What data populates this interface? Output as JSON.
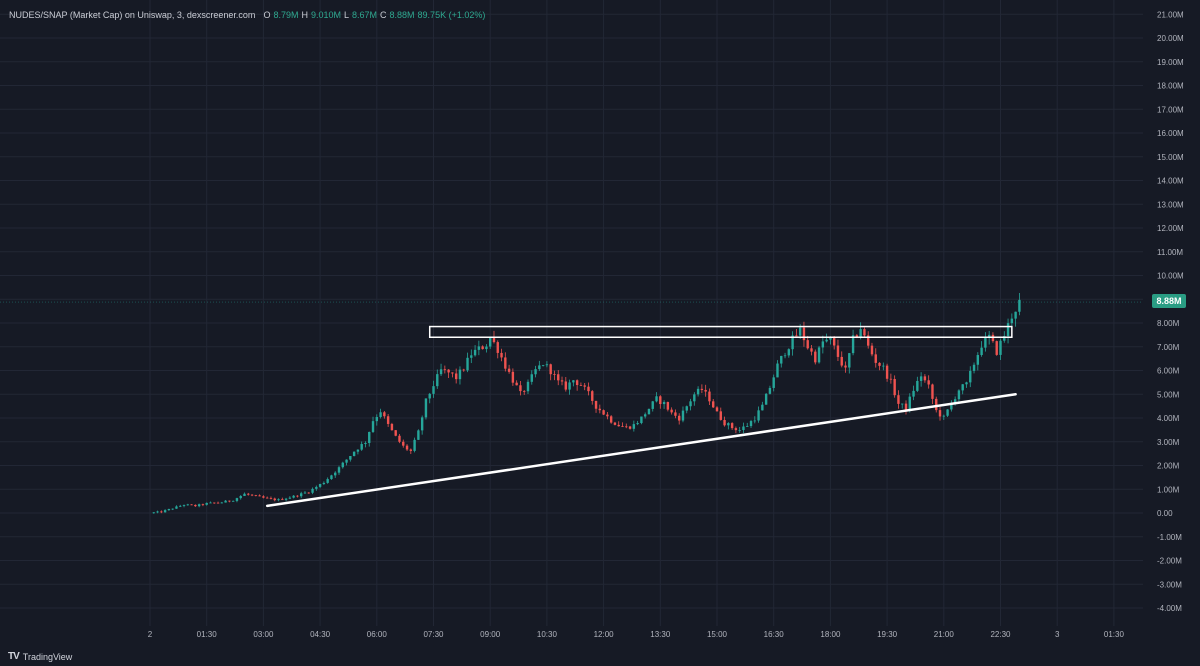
{
  "header": {
    "symbol": "NUDES/SNAP (Market Cap) on Uniswap, 3, dexscreener.com",
    "o_label": "O",
    "o_value": "8.79M",
    "h_label": "H",
    "h_value": "9.010M",
    "l_label": "L",
    "l_value": "8.67M",
    "c_label": "C",
    "c_value": "8.88M",
    "change": "89.75K (+1.02%)"
  },
  "price_badge": "8.88M",
  "brand": {
    "icon": "TV",
    "name": "TradingView"
  },
  "colors": {
    "background": "#161a25",
    "grid": "#222735",
    "up": "#26a69a",
    "down": "#ef5350",
    "badge": "#2a9d84",
    "annotation": "#ffffff"
  },
  "chart_data": {
    "type": "candlestick",
    "title": "NUDES/SNAP (Market Cap) on Uniswap, 3, dexscreener.com",
    "y_unit": "M",
    "ylim": [
      -4.5,
      21.2
    ],
    "y_ticks": [
      "21.00M",
      "20.00M",
      "19.00M",
      "18.00M",
      "17.00M",
      "16.00M",
      "15.00M",
      "14.00M",
      "13.00M",
      "12.00M",
      "11.00M",
      "10.00M",
      "9.00M",
      "8.00M",
      "7.00M",
      "6.00M",
      "5.00M",
      "4.00M",
      "3.00M",
      "2.00M",
      "1.00M",
      "0.00",
      "-1.00M",
      "-2.00M",
      "-3.00M",
      "-4.00M"
    ],
    "y_tick_values": [
      21,
      20,
      19,
      18,
      17,
      16,
      15,
      14,
      13,
      12,
      11,
      10,
      9,
      8,
      7,
      6,
      5,
      4,
      3,
      2,
      1,
      0,
      -1,
      -2,
      -3,
      -4
    ],
    "x_ticks": [
      "2",
      "01:30",
      "03:00",
      "04:30",
      "06:00",
      "07:30",
      "09:00",
      "10:30",
      "12:00",
      "13:30",
      "15:00",
      "16:30",
      "18:00",
      "19:30",
      "21:00",
      "22:30",
      "3",
      "01:30"
    ],
    "x_tick_hours": [
      0,
      1.5,
      3,
      4.5,
      6,
      7.5,
      9,
      10.5,
      12,
      13.5,
      15,
      16.5,
      18,
      19.5,
      21,
      22.5,
      24,
      25.5
    ],
    "candle_interval_minutes": 3,
    "last_price": 8.88,
    "price_path": [
      [
        0.0,
        0.0
      ],
      [
        0.3,
        0.05
      ],
      [
        0.6,
        0.2
      ],
      [
        0.9,
        0.35
      ],
      [
        1.2,
        0.3
      ],
      [
        1.5,
        0.4
      ],
      [
        1.9,
        0.45
      ],
      [
        2.2,
        0.55
      ],
      [
        2.5,
        0.8
      ],
      [
        2.8,
        0.7
      ],
      [
        3.1,
        0.6
      ],
      [
        3.4,
        0.55
      ],
      [
        3.8,
        0.7
      ],
      [
        4.2,
        0.9
      ],
      [
        4.6,
        1.3
      ],
      [
        5.0,
        1.9
      ],
      [
        5.4,
        2.6
      ],
      [
        5.7,
        3.0
      ],
      [
        5.9,
        3.9
      ],
      [
        6.1,
        4.3
      ],
      [
        6.3,
        3.7
      ],
      [
        6.5,
        3.2
      ],
      [
        6.7,
        2.8
      ],
      [
        6.9,
        2.6
      ],
      [
        7.1,
        3.4
      ],
      [
        7.3,
        4.7
      ],
      [
        7.5,
        5.4
      ],
      [
        7.7,
        6.0
      ],
      [
        7.9,
        5.9
      ],
      [
        8.1,
        5.7
      ],
      [
        8.3,
        6.1
      ],
      [
        8.5,
        6.7
      ],
      [
        8.7,
        6.9
      ],
      [
        8.9,
        7.1
      ],
      [
        9.0,
        7.4
      ],
      [
        9.2,
        6.9
      ],
      [
        9.4,
        6.2
      ],
      [
        9.6,
        5.6
      ],
      [
        9.8,
        5.0
      ],
      [
        10.0,
        5.4
      ],
      [
        10.2,
        6.0
      ],
      [
        10.4,
        6.3
      ],
      [
        10.6,
        6.0
      ],
      [
        10.8,
        5.5
      ],
      [
        11.0,
        5.3
      ],
      [
        11.2,
        5.6
      ],
      [
        11.4,
        5.4
      ],
      [
        11.6,
        5.0
      ],
      [
        11.8,
        4.5
      ],
      [
        12.0,
        4.2
      ],
      [
        12.2,
        3.9
      ],
      [
        12.4,
        3.7
      ],
      [
        12.6,
        3.6
      ],
      [
        12.8,
        3.7
      ],
      [
        13.0,
        4.0
      ],
      [
        13.2,
        4.4
      ],
      [
        13.4,
        4.8
      ],
      [
        13.6,
        4.6
      ],
      [
        13.8,
        4.2
      ],
      [
        14.0,
        4.0
      ],
      [
        14.2,
        4.5
      ],
      [
        14.4,
        5.0
      ],
      [
        14.6,
        5.2
      ],
      [
        14.8,
        4.8
      ],
      [
        15.0,
        4.2
      ],
      [
        15.2,
        3.8
      ],
      [
        15.4,
        3.6
      ],
      [
        15.6,
        3.5
      ],
      [
        15.8,
        3.7
      ],
      [
        16.0,
        4.0
      ],
      [
        16.2,
        4.5
      ],
      [
        16.4,
        5.3
      ],
      [
        16.6,
        6.2
      ],
      [
        16.8,
        6.8
      ],
      [
        17.0,
        7.3
      ],
      [
        17.2,
        7.7
      ],
      [
        17.4,
        7.0
      ],
      [
        17.6,
        6.5
      ],
      [
        17.8,
        7.2
      ],
      [
        18.0,
        7.3
      ],
      [
        18.2,
        6.6
      ],
      [
        18.4,
        6.0
      ],
      [
        18.6,
        7.3
      ],
      [
        18.8,
        7.8
      ],
      [
        19.0,
        7.0
      ],
      [
        19.2,
        6.4
      ],
      [
        19.4,
        6.1
      ],
      [
        19.6,
        5.5
      ],
      [
        19.8,
        4.6
      ],
      [
        20.0,
        4.4
      ],
      [
        20.2,
        5.2
      ],
      [
        20.4,
        5.8
      ],
      [
        20.6,
        5.3
      ],
      [
        20.8,
        4.3
      ],
      [
        21.0,
        4.0
      ],
      [
        21.2,
        4.6
      ],
      [
        21.4,
        5.2
      ],
      [
        21.6,
        5.4
      ],
      [
        21.8,
        6.3
      ],
      [
        22.0,
        7.1
      ],
      [
        22.2,
        7.4
      ],
      [
        22.4,
        6.8
      ],
      [
        22.6,
        7.5
      ],
      [
        22.8,
        8.3
      ],
      [
        23.0,
        8.88
      ]
    ],
    "annotations": [
      {
        "type": "rectangle",
        "label": "resistance-zone",
        "from_hour": 7.4,
        "to_hour": 22.8,
        "y_low": 7.4,
        "y_high": 7.85
      },
      {
        "type": "trendline",
        "label": "support-trendline",
        "from_hour": 3.1,
        "from_value": 0.3,
        "to_hour": 22.9,
        "to_value": 5.0
      }
    ]
  }
}
